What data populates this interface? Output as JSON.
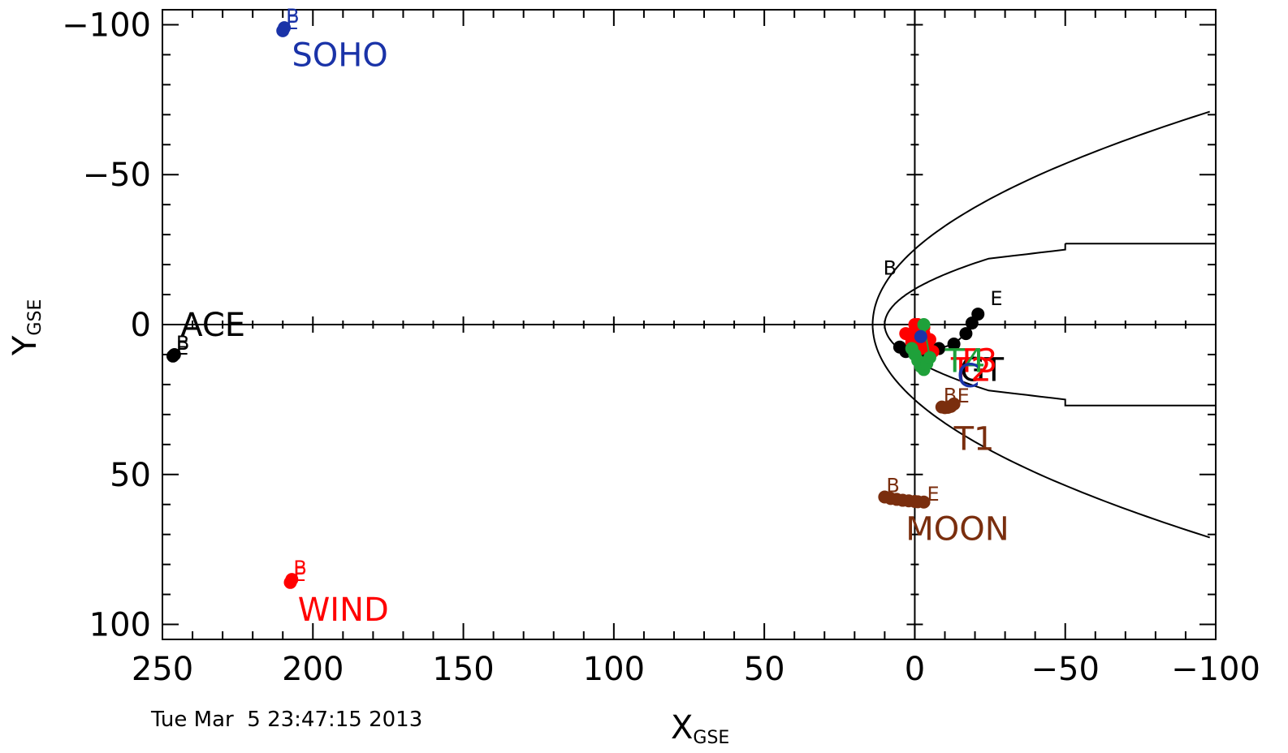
{
  "timestamp": "Tue Mar  5 23:47:15 2013",
  "chart_data": {
    "type": "scatter",
    "xlabel": "X",
    "xlabel_sub": "GSE",
    "ylabel": "Y",
    "ylabel_sub": "GSE",
    "xlim": [
      250,
      -100
    ],
    "ylim": [
      -105,
      105
    ],
    "x_reversed": true,
    "y_reversed": true,
    "x_ticks": [
      250,
      200,
      150,
      100,
      50,
      0,
      -50,
      -100
    ],
    "x_tick_labels": [
      "250",
      "200",
      "150",
      "100",
      "50",
      "0",
      "−50",
      "−100"
    ],
    "y_ticks": [
      -100,
      -50,
      0,
      50,
      100
    ],
    "y_tick_labels": [
      "−100",
      "−50",
      "0",
      "50",
      "100"
    ],
    "grid": false,
    "colors": {
      "black": "#000000",
      "blue": "#1a33a8",
      "red": "#ff0000",
      "brown": "#7a2e0e",
      "green": "#1fa13a"
    },
    "series": [
      {
        "name": "SOHO",
        "color": "#1a33a8",
        "x": [
          209.5,
          210
        ],
        "y": [
          -99,
          -98
        ],
        "begin_label": "B",
        "end_label": "E",
        "label_at": [
          207,
          -90
        ]
      },
      {
        "name": "ACE",
        "color": "#000000",
        "x": [
          246,
          246.5
        ],
        "y": [
          10,
          10.5
        ],
        "begin_label": "B",
        "end_label": "E",
        "label_at": [
          244,
          0
        ]
      },
      {
        "name": "WIND",
        "color": "#ff0000",
        "x": [
          207,
          207.5
        ],
        "y": [
          85,
          86
        ],
        "begin_label": "B",
        "end_label": "E",
        "label_at": [
          205,
          95
        ]
      },
      {
        "name": "MOON",
        "color": "#7a2e0e",
        "x": [
          10,
          8,
          6,
          4,
          2,
          0,
          -1,
          -3
        ],
        "y": [
          57.5,
          58,
          58.3,
          58.6,
          58.8,
          59,
          59.1,
          59.2
        ],
        "begin_label": "B",
        "end_label": "E",
        "label_at": [
          3,
          68
        ]
      },
      {
        "name": "T1",
        "color": "#7a2e0e",
        "x": [
          -9,
          -10,
          -11,
          -12,
          -13
        ],
        "y": [
          27.5,
          27.7,
          27.6,
          27.3,
          26.5
        ],
        "begin_label": "B",
        "end_label": "E",
        "label_at": [
          -13,
          38
        ]
      },
      {
        "name": "GT",
        "color": "#000000",
        "x": [
          5,
          3,
          -1,
          -4,
          -8,
          -13,
          -17,
          -19,
          -21
        ],
        "y": [
          7.5,
          9,
          9.5,
          9,
          8,
          6.5,
          3,
          -0.5,
          -3.5
        ],
        "begin_label": "B",
        "end_label": "E",
        "label_at": [
          -15,
          15
        ],
        "begin_at": [
          11,
          -15
        ],
        "end_at": [
          -24,
          -6
        ]
      },
      {
        "name": "T2",
        "color": "#ff0000",
        "x": [
          0,
          -1,
          -2,
          -4,
          -6,
          1,
          3,
          0,
          -3
        ],
        "y": [
          2,
          4,
          6,
          8,
          9,
          5,
          3,
          0,
          1
        ],
        "label_at": [
          -12,
          15
        ]
      },
      {
        "name": "T3",
        "color": "#ff0000",
        "x": [
          -3,
          -5,
          -2,
          1,
          -1
        ],
        "y": [
          3,
          5,
          8,
          6,
          0
        ],
        "label_at": [
          -14,
          12
        ]
      },
      {
        "name": "T4",
        "color": "#1fa13a",
        "x": [
          1,
          0,
          -1,
          -2,
          -3,
          -4,
          -5,
          -3
        ],
        "y": [
          8,
          10,
          12,
          14,
          15,
          13,
          11,
          0
        ],
        "label_at": [
          -10,
          12
        ]
      },
      {
        "name": "C",
        "color": "#1a33a8",
        "x": [
          -2
        ],
        "y": [
          4
        ],
        "label_at": [
          -14,
          17
        ]
      }
    ],
    "center_labels": [
      "C",
      "2",
      "4",
      "3",
      "3"
    ],
    "model_curves": [
      "bow shock",
      "magnetopause"
    ]
  }
}
